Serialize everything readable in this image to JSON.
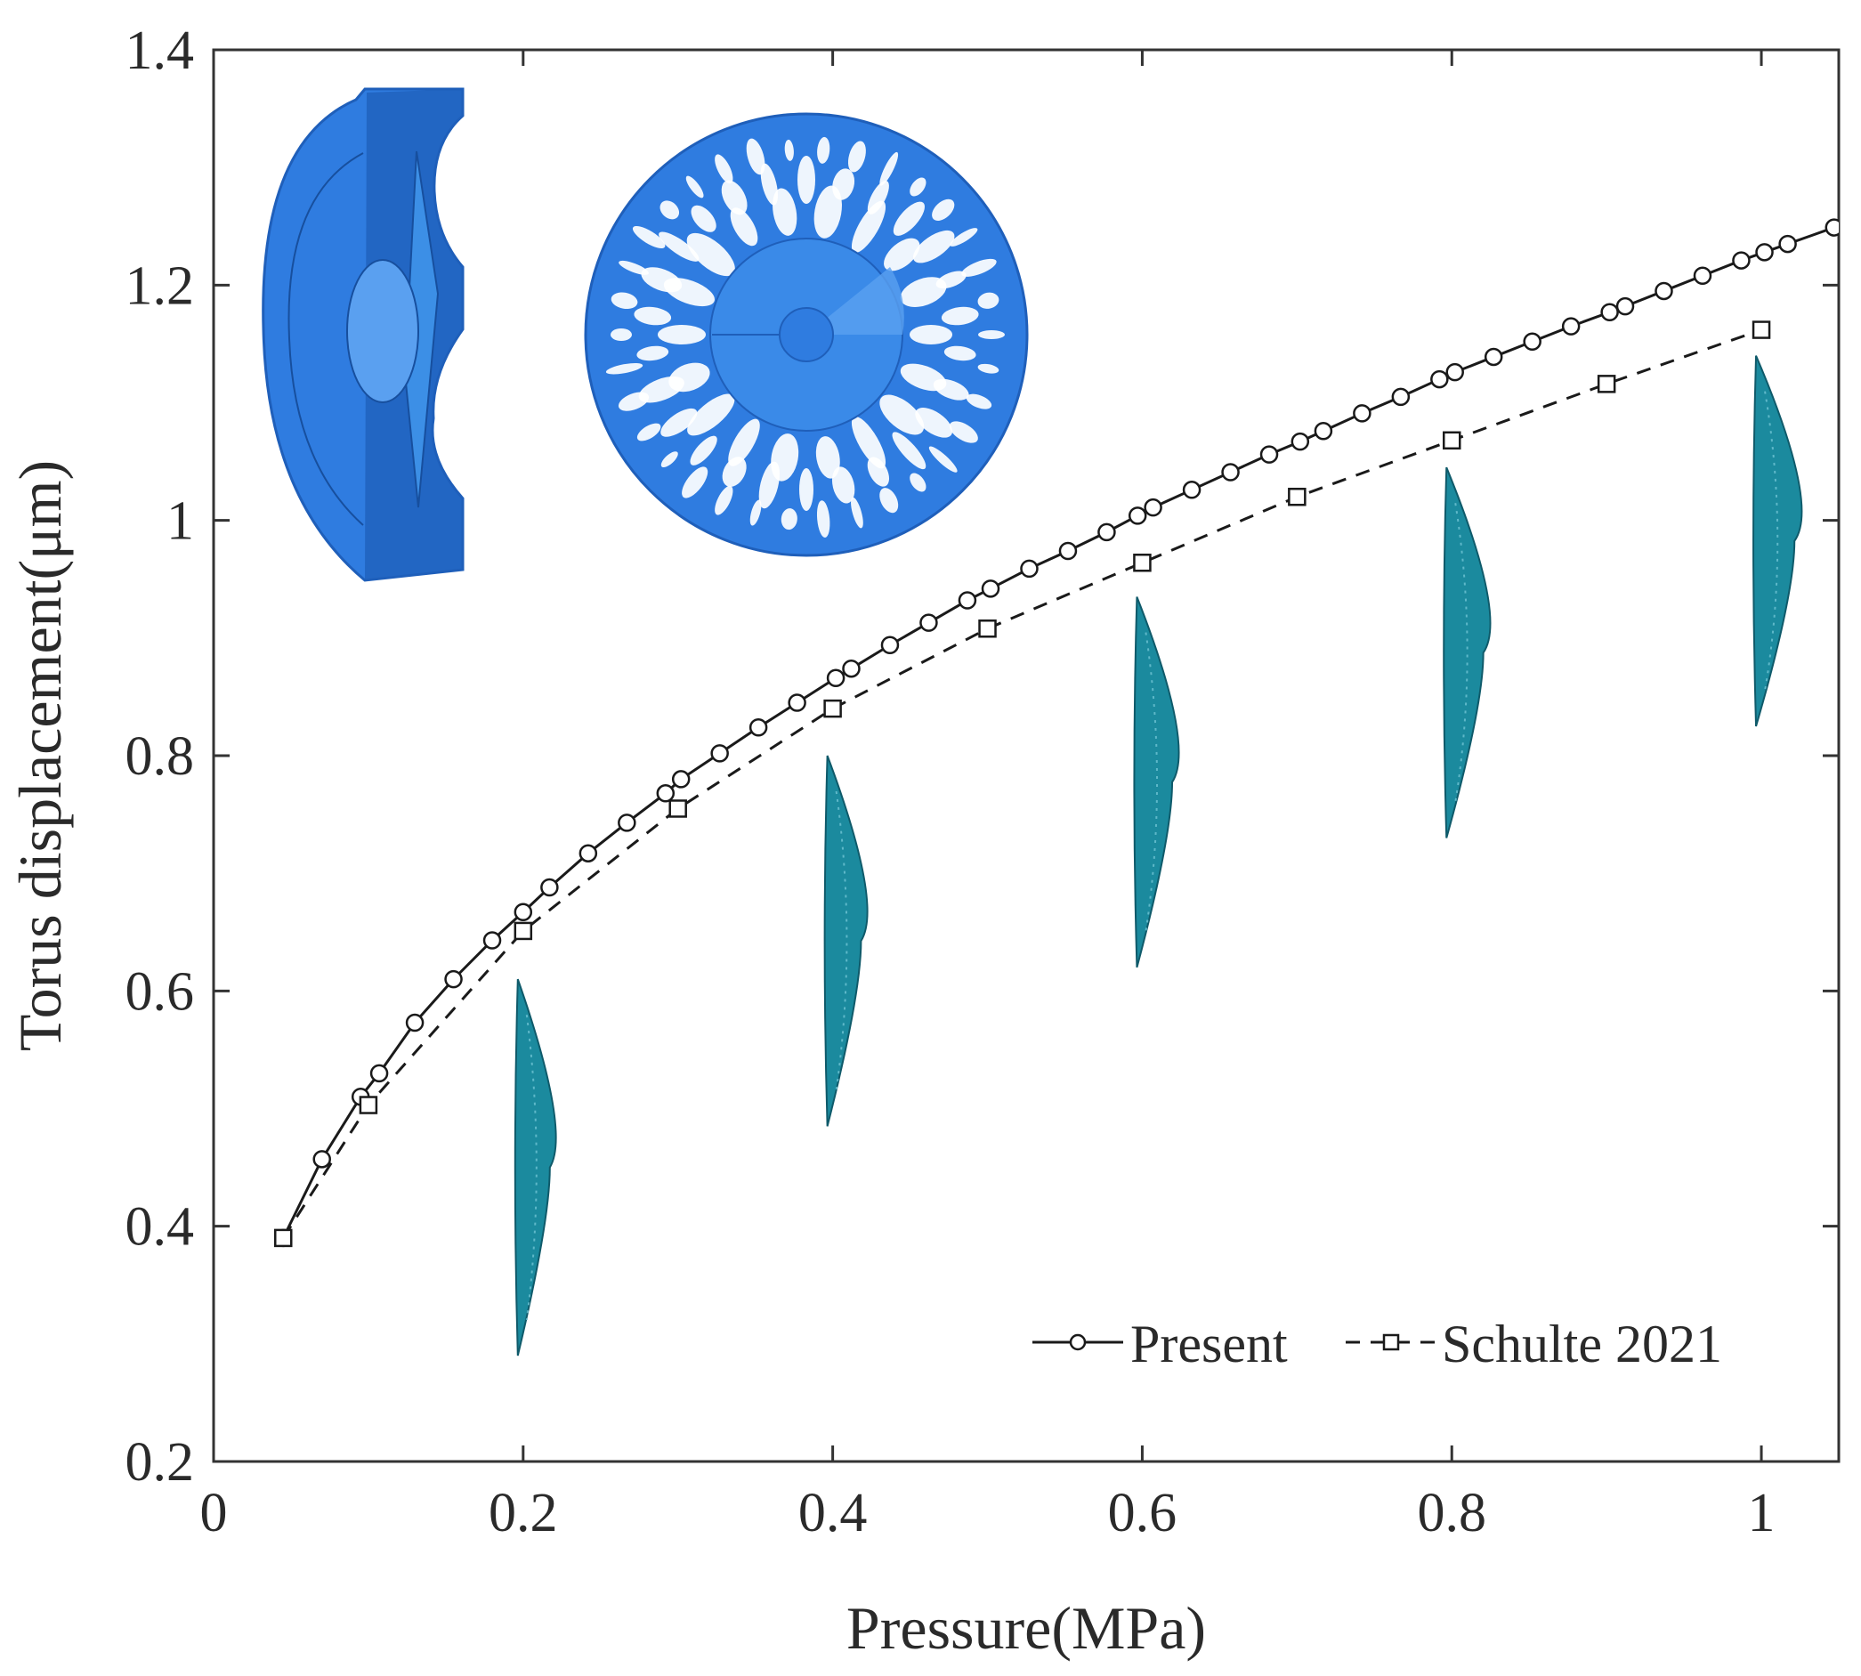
{
  "chart_data": {
    "type": "line",
    "xlabel": "Pressure(MPa)",
    "ylabel": "Torus displacement(μm)",
    "xlim": [
      0,
      1.05
    ],
    "ylim": [
      0.2,
      1.4
    ],
    "xticks": [
      0,
      0.2,
      0.4,
      0.6,
      0.8,
      1
    ],
    "yticks": [
      0.2,
      0.4,
      0.6,
      0.8,
      1,
      1.2,
      1.4
    ],
    "xtick_labels": [
      "0",
      "0.2",
      "0.4",
      "0.6",
      "0.8",
      "1"
    ],
    "ytick_labels": [
      "0.2",
      "0.4",
      "0.6",
      "0.8",
      "1",
      "1.2",
      "1.4"
    ],
    "legend_position": "bottom-right",
    "series": [
      {
        "name": "Present",
        "line_style": "solid",
        "marker": "circle",
        "color": "#1a1a1a",
        "x": [
          0.045,
          0.07,
          0.095,
          0.107,
          0.13,
          0.155,
          0.18,
          0.2,
          0.217,
          0.242,
          0.267,
          0.292,
          0.302,
          0.327,
          0.352,
          0.377,
          0.402,
          0.412,
          0.437,
          0.462,
          0.487,
          0.502,
          0.527,
          0.552,
          0.577,
          0.597,
          0.607,
          0.632,
          0.657,
          0.682,
          0.702,
          0.717,
          0.742,
          0.767,
          0.792,
          0.802,
          0.827,
          0.852,
          0.877,
          0.902,
          0.912,
          0.937,
          0.962,
          0.987,
          1.002,
          1.017,
          1.047
        ],
        "y": [
          0.39,
          0.457,
          0.51,
          0.53,
          0.573,
          0.61,
          0.643,
          0.667,
          0.688,
          0.717,
          0.743,
          0.768,
          0.78,
          0.802,
          0.824,
          0.845,
          0.866,
          0.874,
          0.894,
          0.913,
          0.932,
          0.942,
          0.959,
          0.974,
          0.99,
          1.004,
          1.011,
          1.026,
          1.041,
          1.056,
          1.067,
          1.076,
          1.091,
          1.105,
          1.12,
          1.126,
          1.139,
          1.152,
          1.165,
          1.177,
          1.182,
          1.195,
          1.208,
          1.221,
          1.228,
          1.235,
          1.249
        ]
      },
      {
        "name": "Schulte 2021",
        "line_style": "dashed",
        "marker": "square",
        "color": "#1a1a1a",
        "x": [
          0.045,
          0.1,
          0.2,
          0.3,
          0.4,
          0.5,
          0.6,
          0.7,
          0.8,
          0.9,
          1.0
        ],
        "y": [
          0.39,
          0.503,
          0.651,
          0.755,
          0.84,
          0.908,
          0.964,
          1.02,
          1.068,
          1.116,
          1.162
        ]
      }
    ]
  },
  "insets": {
    "model_section_label": "half-section CAD model",
    "lattice_disc_label": "lattice disc top view",
    "deformed_shape_label": "deformed torus profile",
    "deformed_shapes_at_x": [
      0.2,
      0.4,
      0.6,
      0.8,
      1.0
    ],
    "colors": {
      "model_blue": "#2f7ce0",
      "model_blue_dark": "#1f5fba",
      "model_blue_light": "#5aa0f0",
      "teal": "#1b8a9e",
      "teal_dark": "#0f5a6a"
    }
  }
}
